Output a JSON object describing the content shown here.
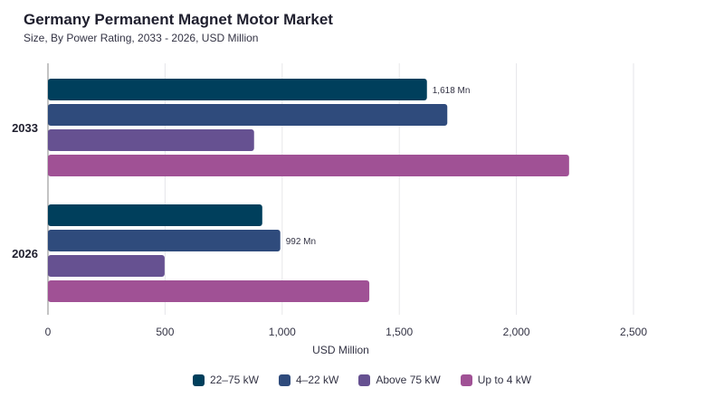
{
  "header": {
    "title": "Germany Permanent Magnet Motor Market",
    "subtitle": "Size, By Power Rating, 2033 - 2026, USD Million"
  },
  "chart_data": {
    "type": "bar",
    "orientation": "horizontal",
    "categories": [
      "2033",
      "2026"
    ],
    "series": [
      {
        "name": "22–75 kW",
        "color": "#003f5c",
        "values": [
          1618,
          915
        ]
      },
      {
        "name": "4–22 kW",
        "color": "#2f4b7c",
        "values": [
          1705,
          992
        ]
      },
      {
        "name": "Above 75 kW",
        "color": "#665191",
        "values": [
          880,
          498
        ]
      },
      {
        "name": "Up to 4 kW",
        "color": "#a05195",
        "values": [
          2225,
          1372
        ]
      }
    ],
    "data_labels": [
      {
        "category": "2033",
        "series": "22–75 kW",
        "text": "1,618 Mn"
      },
      {
        "category": "2026",
        "series": "4–22 kW",
        "text": "992 Mn"
      }
    ],
    "xlabel": "USD Million",
    "xlim": [
      0,
      2500
    ],
    "xticks": [
      0,
      500,
      1000,
      1500,
      2000,
      2500
    ],
    "xtick_labels": [
      "0",
      "500",
      "1,000",
      "1,500",
      "2,000",
      "2,500"
    ],
    "grid": true,
    "legend_position": "bottom"
  }
}
